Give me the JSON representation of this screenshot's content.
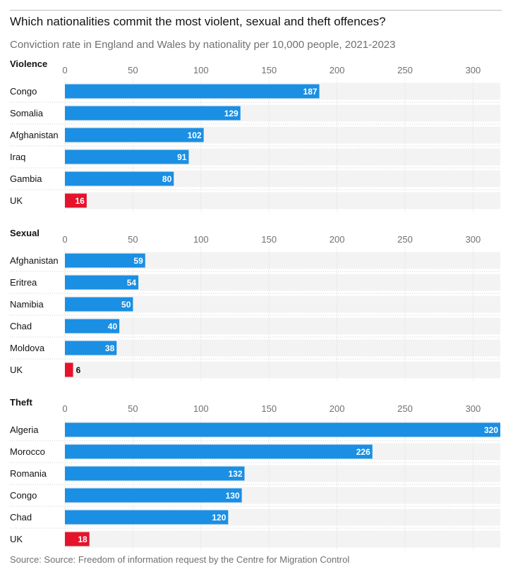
{
  "title": "Which nationalities commit the most violent, sexual and theft offences?",
  "subtitle": "Conviction rate in England and Wales by nationality per 10,000 people, 2021-2023",
  "source": "Source: Source: Freedom of information request by the Centre for Migration Control",
  "colors": {
    "bar": "#1a8fe3",
    "highlight": "#e5132b",
    "band": "#f3f3f3",
    "label_inside": "#ffffff",
    "label_outside": "#121212"
  },
  "chart_data": [
    {
      "type": "bar",
      "title": "Violence",
      "orientation": "horizontal",
      "categories": [
        "Congo",
        "Somalia",
        "Afghanistan",
        "Iraq",
        "Gambia",
        "UK"
      ],
      "values": [
        187,
        129,
        102,
        91,
        80,
        16
      ],
      "highlight": [
        "UK"
      ],
      "xlim": [
        0,
        320
      ],
      "ticks": [
        0,
        50,
        100,
        150,
        200,
        250,
        300
      ],
      "grid": true
    },
    {
      "type": "bar",
      "title": "Sexual",
      "orientation": "horizontal",
      "categories": [
        "Afghanistan",
        "Eritrea",
        "Namibia",
        "Chad",
        "Moldova",
        "UK"
      ],
      "values": [
        59,
        54,
        50,
        40,
        38,
        6
      ],
      "highlight": [
        "UK"
      ],
      "xlim": [
        0,
        320
      ],
      "ticks": [
        0,
        50,
        100,
        150,
        200,
        250,
        300
      ],
      "grid": true
    },
    {
      "type": "bar",
      "title": "Theft",
      "orientation": "horizontal",
      "categories": [
        "Algeria",
        "Morocco",
        "Romania",
        "Congo",
        "Chad",
        "UK"
      ],
      "values": [
        320,
        226,
        132,
        130,
        120,
        18
      ],
      "highlight": [
        "UK"
      ],
      "xlim": [
        0,
        320
      ],
      "ticks": [
        0,
        50,
        100,
        150,
        200,
        250,
        300
      ],
      "grid": true
    }
  ]
}
